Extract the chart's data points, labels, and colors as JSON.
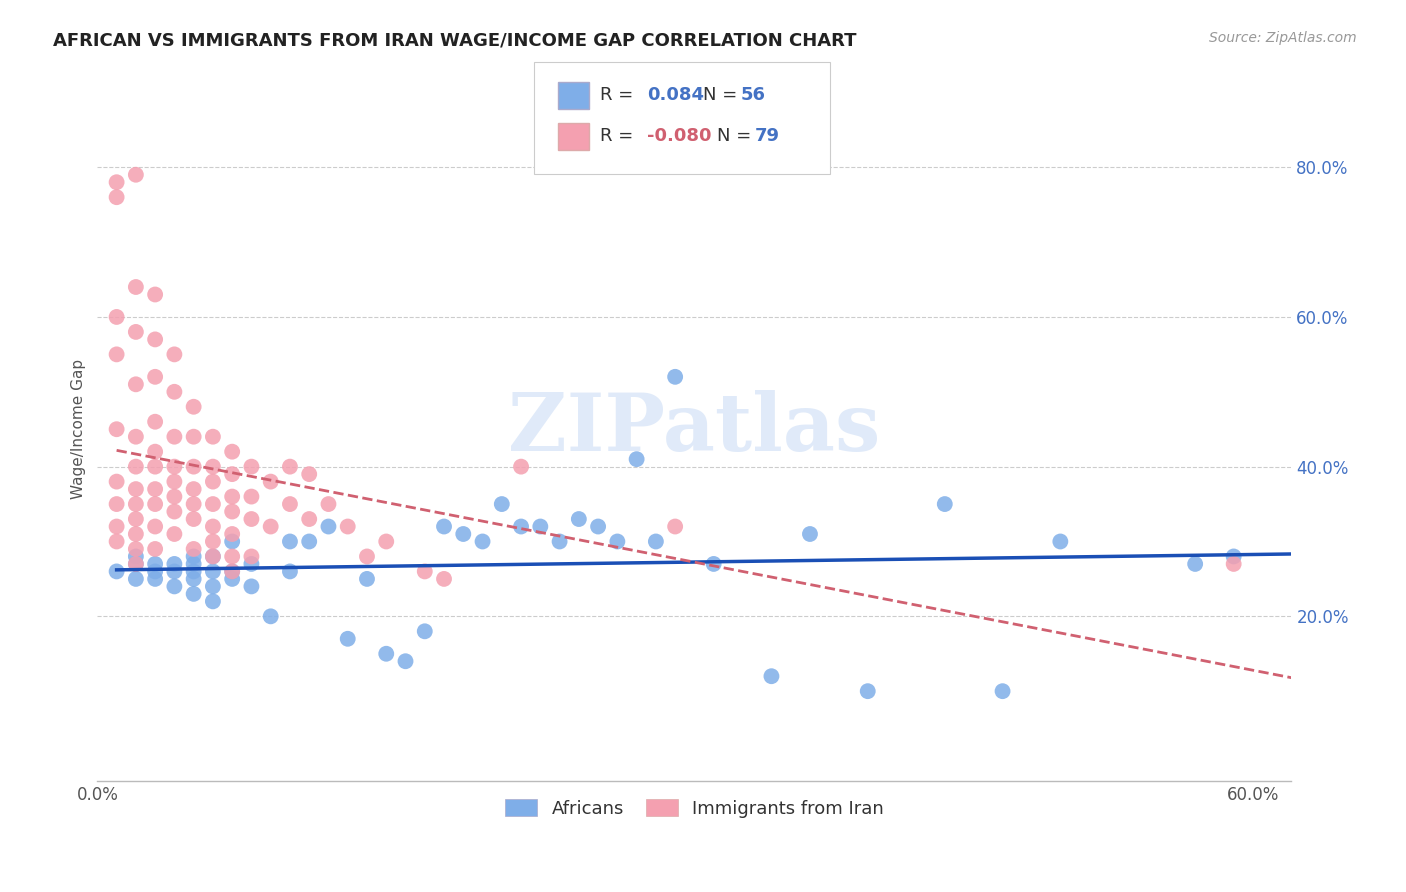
{
  "title": "AFRICAN VS IMMIGRANTS FROM IRAN WAGE/INCOME GAP CORRELATION CHART",
  "source": "Source: ZipAtlas.com",
  "ylabel": "Wage/Income Gap",
  "xlim": [
    0.0,
    0.62
  ],
  "ylim": [
    -0.02,
    0.92
  ],
  "x_ticks": [
    0.0,
    0.1,
    0.2,
    0.3,
    0.4,
    0.5,
    0.6
  ],
  "x_tick_labels": [
    "0.0%",
    "",
    "",
    "",
    "",
    "",
    "60.0%"
  ],
  "y_ticks_right": [
    0.2,
    0.4,
    0.6,
    0.8
  ],
  "y_tick_labels_right": [
    "20.0%",
    "40.0%",
    "60.0%",
    "80.0%"
  ],
  "africans_color": "#7faee8",
  "iran_color": "#f4a0b0",
  "africans_line_color": "#1a4fb5",
  "iran_line_color": "#d06070",
  "legend_r_africans": "R =  0.084",
  "legend_n_africans": "N = 56",
  "legend_r_iran": "R = -0.080",
  "legend_n_iran": "N = 79",
  "watermark": "ZIPatlas",
  "legend_label_africans": "Africans",
  "legend_label_iran": "Immigrants from Iran",
  "africans_x": [
    0.01,
    0.02,
    0.02,
    0.02,
    0.03,
    0.03,
    0.03,
    0.04,
    0.04,
    0.04,
    0.05,
    0.05,
    0.05,
    0.05,
    0.05,
    0.06,
    0.06,
    0.06,
    0.06,
    0.07,
    0.07,
    0.07,
    0.08,
    0.08,
    0.09,
    0.1,
    0.1,
    0.11,
    0.12,
    0.13,
    0.14,
    0.15,
    0.16,
    0.17,
    0.18,
    0.19,
    0.2,
    0.21,
    0.22,
    0.23,
    0.24,
    0.25,
    0.26,
    0.27,
    0.28,
    0.29,
    0.3,
    0.32,
    0.35,
    0.37,
    0.4,
    0.44,
    0.47,
    0.5,
    0.57,
    0.59
  ],
  "africans_y": [
    0.26,
    0.25,
    0.27,
    0.28,
    0.25,
    0.26,
    0.27,
    0.24,
    0.26,
    0.27,
    0.23,
    0.25,
    0.26,
    0.27,
    0.28,
    0.22,
    0.24,
    0.26,
    0.28,
    0.25,
    0.26,
    0.3,
    0.24,
    0.27,
    0.2,
    0.26,
    0.3,
    0.3,
    0.32,
    0.17,
    0.25,
    0.15,
    0.14,
    0.18,
    0.32,
    0.31,
    0.3,
    0.35,
    0.32,
    0.32,
    0.3,
    0.33,
    0.32,
    0.3,
    0.41,
    0.3,
    0.52,
    0.27,
    0.12,
    0.31,
    0.1,
    0.35,
    0.1,
    0.3,
    0.27,
    0.28
  ],
  "iran_x": [
    0.01,
    0.01,
    0.01,
    0.01,
    0.01,
    0.01,
    0.01,
    0.01,
    0.01,
    0.02,
    0.02,
    0.02,
    0.02,
    0.02,
    0.02,
    0.02,
    0.02,
    0.02,
    0.02,
    0.02,
    0.02,
    0.03,
    0.03,
    0.03,
    0.03,
    0.03,
    0.03,
    0.03,
    0.03,
    0.03,
    0.03,
    0.04,
    0.04,
    0.04,
    0.04,
    0.04,
    0.04,
    0.04,
    0.04,
    0.05,
    0.05,
    0.05,
    0.05,
    0.05,
    0.05,
    0.05,
    0.06,
    0.06,
    0.06,
    0.06,
    0.06,
    0.06,
    0.06,
    0.07,
    0.07,
    0.07,
    0.07,
    0.07,
    0.07,
    0.07,
    0.08,
    0.08,
    0.08,
    0.08,
    0.09,
    0.09,
    0.1,
    0.1,
    0.11,
    0.11,
    0.12,
    0.13,
    0.14,
    0.15,
    0.17,
    0.18,
    0.22,
    0.3,
    0.59
  ],
  "iran_y": [
    0.76,
    0.78,
    0.6,
    0.55,
    0.45,
    0.38,
    0.35,
    0.32,
    0.3,
    0.79,
    0.64,
    0.58,
    0.51,
    0.44,
    0.4,
    0.37,
    0.35,
    0.33,
    0.31,
    0.29,
    0.27,
    0.63,
    0.57,
    0.52,
    0.46,
    0.42,
    0.4,
    0.37,
    0.35,
    0.32,
    0.29,
    0.55,
    0.5,
    0.44,
    0.4,
    0.38,
    0.36,
    0.34,
    0.31,
    0.48,
    0.44,
    0.4,
    0.37,
    0.35,
    0.33,
    0.29,
    0.44,
    0.4,
    0.38,
    0.35,
    0.32,
    0.3,
    0.28,
    0.42,
    0.39,
    0.36,
    0.34,
    0.31,
    0.28,
    0.26,
    0.4,
    0.36,
    0.33,
    0.28,
    0.38,
    0.32,
    0.4,
    0.35,
    0.39,
    0.33,
    0.35,
    0.32,
    0.28,
    0.3,
    0.26,
    0.25,
    0.4,
    0.32,
    0.27
  ]
}
